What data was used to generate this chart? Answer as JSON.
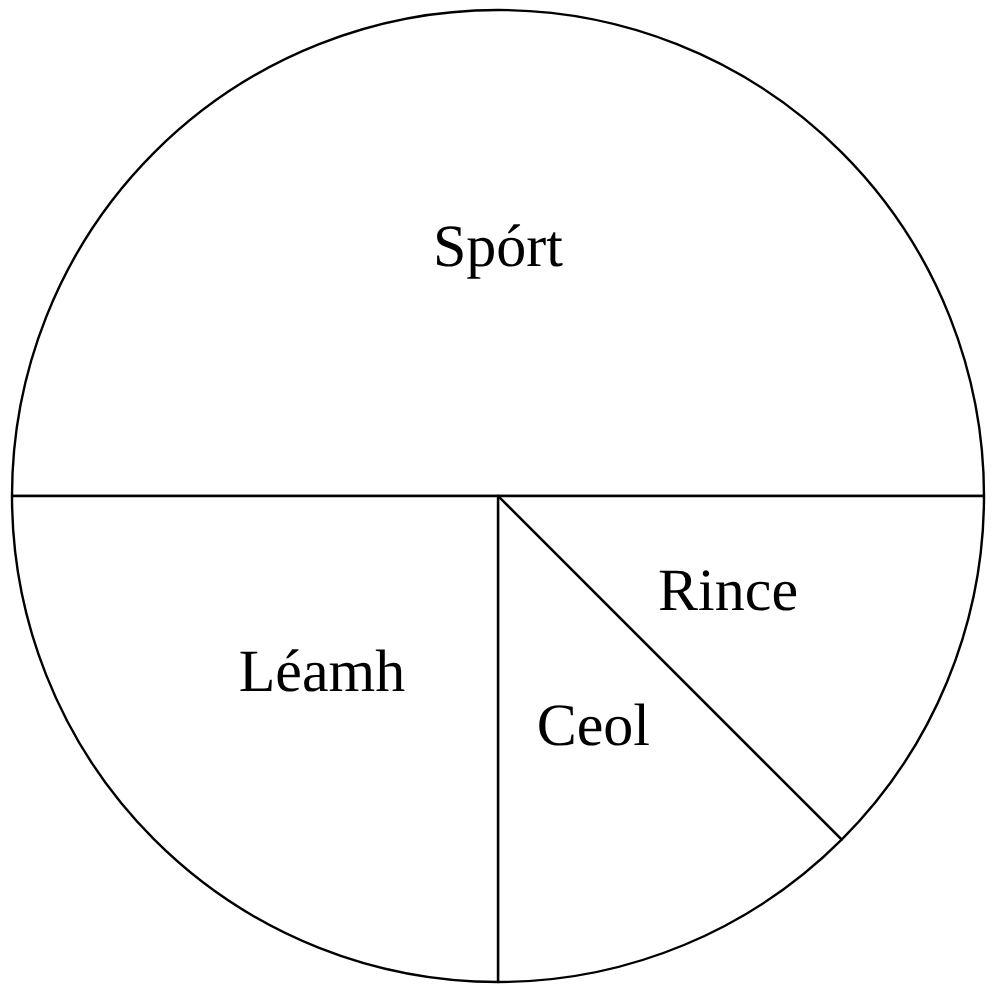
{
  "chart_data": {
    "type": "pie",
    "categories": [
      "Spórt",
      "Rince",
      "Ceol",
      "Léamh"
    ],
    "values": [
      50,
      12.5,
      12.5,
      25
    ],
    "colors": [
      "#ffffff",
      "#ffffff",
      "#ffffff",
      "#ffffff"
    ]
  }
}
